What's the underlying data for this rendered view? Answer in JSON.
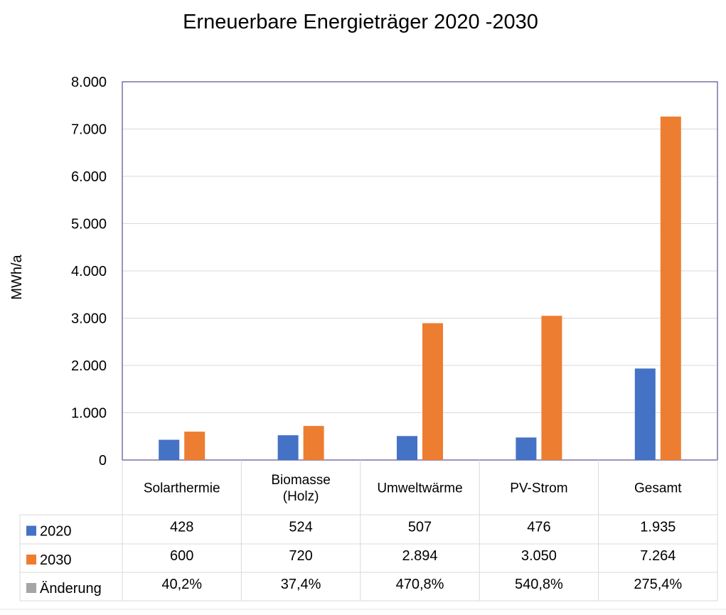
{
  "chart_data": {
    "type": "bar",
    "title": "Erneuerbare Energieträger 2020 -2030",
    "ylabel": "MWh/a",
    "xlabel": "",
    "ylim": [
      0,
      8000
    ],
    "y_ticks": [
      0,
      1000,
      2000,
      3000,
      4000,
      5000,
      6000,
      7000,
      8000
    ],
    "y_tick_labels": [
      "0",
      "1.000",
      "2.000",
      "3.000",
      "4.000",
      "5.000",
      "6.000",
      "7.000",
      "8.000"
    ],
    "grid": true,
    "legend": "data-table-left",
    "categories": [
      [
        "Solarthermie"
      ],
      [
        "Biomasse",
        "(Holz)"
      ],
      [
        "Umweltwärme"
      ],
      [
        "PV-Strom"
      ],
      [
        "Gesamt"
      ]
    ],
    "series": [
      {
        "name": "2020",
        "color": "#4472c4",
        "values": [
          428,
          524,
          507,
          476,
          1935
        ]
      },
      {
        "name": "2030",
        "color": "#ed7d31",
        "values": [
          600,
          720,
          2894,
          3050,
          7264
        ]
      }
    ],
    "data_table": [
      {
        "name": "2020",
        "color": "#4472c4",
        "cells": [
          "428",
          "524",
          "507",
          "476",
          "1.935"
        ]
      },
      {
        "name": "2030",
        "color": "#ed7d31",
        "cells": [
          "600",
          "720",
          "2.894",
          "3.050",
          "7.264"
        ]
      },
      {
        "name": "Änderung",
        "color": "#a5a5a5",
        "cells": [
          "40,2%",
          "37,4%",
          "470,8%",
          "540,8%",
          "275,4%"
        ]
      }
    ]
  }
}
